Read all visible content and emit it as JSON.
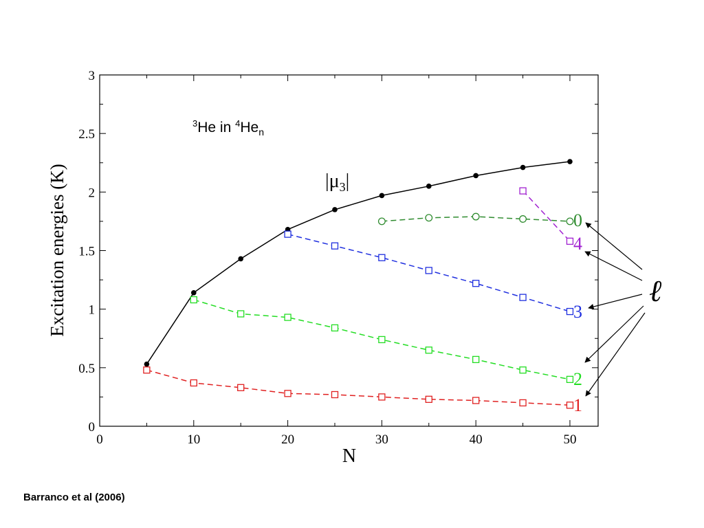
{
  "caption": "Barranco et al (2006)",
  "chart_data": {
    "type": "line",
    "title": "",
    "annotation": {
      "iso3": "3",
      "text1": "He in ",
      "iso4": "4",
      "text2": "He",
      "sub": "n"
    },
    "xlabel": "N",
    "ylabel": "Excitation energies (K)",
    "xlim": [
      0,
      53
    ],
    "ylim": [
      0,
      3
    ],
    "xticks": [
      0,
      10,
      20,
      30,
      40,
      50
    ],
    "yticks": [
      0,
      0.5,
      1,
      1.5,
      2,
      2.5,
      3
    ],
    "xtick_labels": [
      "0",
      "10",
      "20",
      "30",
      "40",
      "50"
    ],
    "ytick_labels": [
      "0",
      "0.5",
      "1",
      "1.5",
      "2",
      "2.5",
      "3"
    ],
    "grid": false,
    "ell_symbol": "ℓ",
    "series": [
      {
        "name": "|μ3|",
        "label_parts": {
          "bar": "|",
          "mu": "μ",
          "sub": "3"
        },
        "color": "#000000",
        "marker": "filled-circle",
        "dashed": false,
        "x": [
          5,
          10,
          15,
          20,
          25,
          30,
          35,
          40,
          45,
          50
        ],
        "y": [
          0.53,
          1.14,
          1.43,
          1.68,
          1.85,
          1.97,
          2.05,
          2.14,
          2.21,
          2.26
        ]
      },
      {
        "name": "0",
        "color": "#2e8b2e",
        "marker": "open-circle",
        "dashed": true,
        "x": [
          30,
          35,
          40,
          45,
          50
        ],
        "y": [
          1.75,
          1.78,
          1.79,
          1.77,
          1.75
        ]
      },
      {
        "name": "4",
        "color": "#a020d0",
        "marker": "open-square",
        "dashed": true,
        "x": [
          45,
          50
        ],
        "y": [
          2.01,
          1.58
        ]
      },
      {
        "name": "3",
        "color": "#1f2fdf",
        "marker": "open-square",
        "dashed": true,
        "x": [
          20,
          25,
          30,
          35,
          40,
          45,
          50
        ],
        "y": [
          1.64,
          1.54,
          1.44,
          1.33,
          1.22,
          1.1,
          0.98
        ]
      },
      {
        "name": "2",
        "color": "#22dd22",
        "marker": "open-square",
        "dashed": true,
        "x": [
          10,
          15,
          20,
          25,
          30,
          35,
          40,
          45,
          50
        ],
        "y": [
          1.08,
          0.96,
          0.93,
          0.84,
          0.74,
          0.65,
          0.57,
          0.48,
          0.4
        ]
      },
      {
        "name": "1",
        "color": "#e02020",
        "marker": "open-square",
        "dashed": true,
        "x": [
          5,
          10,
          15,
          20,
          25,
          30,
          35,
          40,
          45,
          50
        ],
        "y": [
          0.48,
          0.37,
          0.33,
          0.28,
          0.27,
          0.25,
          0.23,
          0.22,
          0.2,
          0.18
        ]
      }
    ]
  }
}
